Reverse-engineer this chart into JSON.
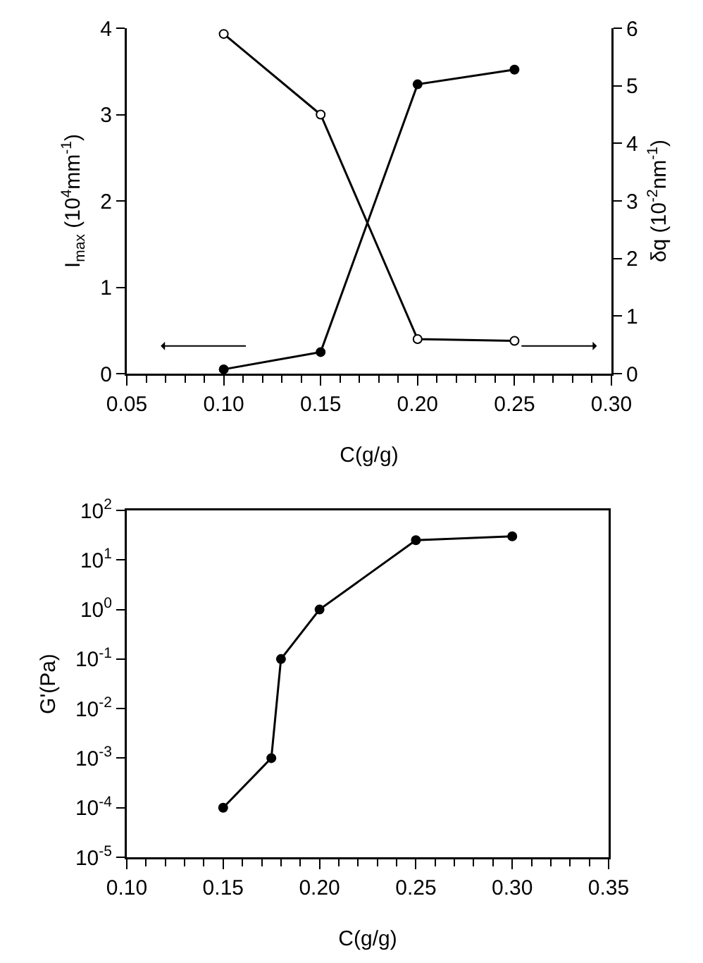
{
  "chart_data": [
    {
      "type": "line",
      "xlabel": "C(g/g)",
      "ylabel": "I$_{max}$ (10$^{4}$mm$^{-1}$)",
      "y2label": "δq (10$^{-2}$nm$^{-1}$)",
      "marker": "circle",
      "line_style": "solid",
      "grid": false,
      "xlim": [
        0.05,
        0.3
      ],
      "xticks": [
        {
          "value": 0.05,
          "label": "0.05"
        },
        {
          "value": 0.1,
          "label": "0.10"
        },
        {
          "value": 0.15,
          "label": "0.15"
        },
        {
          "value": 0.2,
          "label": "0.20"
        },
        {
          "value": 0.25,
          "label": "0.25"
        },
        {
          "value": 0.3,
          "label": "0.30"
        }
      ],
      "ylim": [
        0,
        4
      ],
      "yticks": [
        0,
        1,
        2,
        3,
        4
      ],
      "y2lim": [
        0,
        6
      ],
      "y2ticks": [
        0,
        1,
        2,
        3,
        4,
        5,
        6
      ],
      "x": [
        0.1,
        0.15,
        0.2,
        0.25
      ],
      "series": [
        {
          "color": "#000000",
          "values": [
            0.05,
            0.25,
            3.35,
            3.52
          ]
        },
        {
          "color": "#000000",
          "axis": "y2",
          "values": [
            5.9,
            4.5,
            0.6,
            0.57
          ]
        }
      ]
    },
    {
      "type": "line",
      "xlabel": "C(g/g)",
      "ylabel": "G'(Pa)",
      "marker": "circle",
      "line_style": "solid",
      "grid": false,
      "log": "y",
      "xlim": [
        0.1,
        0.35
      ],
      "xticks": [
        {
          "value": 0.1,
          "label": "0.10"
        },
        {
          "value": 0.15,
          "label": "0.15"
        },
        {
          "value": 0.2,
          "label": "0.20"
        },
        {
          "value": 0.25,
          "label": "0.25"
        },
        {
          "value": 0.3,
          "label": "0.30"
        },
        {
          "value": 0.35,
          "label": "0.35"
        }
      ],
      "ylim": [
        1e-05,
        100
      ],
      "yticks": [
        {
          "value": 1e-05,
          "label": "10$^{-5}$"
        },
        {
          "value": 0.0001,
          "label": "10$^{-4}$"
        },
        {
          "value": 0.001,
          "label": "10$^{-3}$"
        },
        {
          "value": 0.01,
          "label": "10$^{-2}$"
        },
        {
          "value": 0.1,
          "label": "10$^{-1}$"
        },
        {
          "value": 1,
          "label": "10$^{0}$"
        },
        {
          "value": 10,
          "label": "10$^{1}$"
        },
        {
          "value": 100,
          "label": "10$^{2}$"
        }
      ],
      "x": [
        0.15,
        0.175,
        0.18,
        0.2,
        0.25,
        0.3
      ],
      "series": [
        {
          "color": "#000000",
          "values": [
            0.0001,
            0.001,
            0.1,
            1,
            25,
            30
          ]
        }
      ]
    }
  ]
}
